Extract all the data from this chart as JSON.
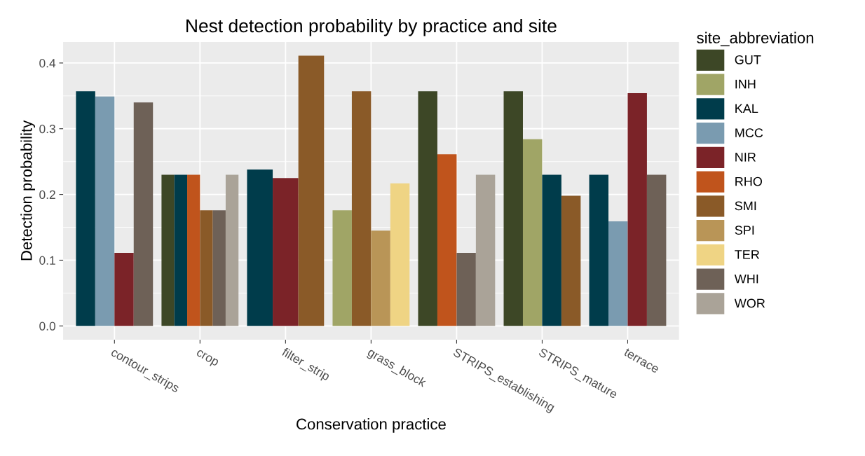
{
  "chart_data": {
    "type": "bar",
    "title": "Nest detection probability by practice and site",
    "xlabel": "Conservation practice",
    "ylabel": "Detection probability",
    "legend_title": "site_abbreviation",
    "legend": "right",
    "grid": true,
    "categories": [
      "contour_strips",
      "crop",
      "filter_strip",
      "grass_block",
      "STRIPS_establishing",
      "STRIPS_mature",
      "terrace"
    ],
    "ylim": [
      -0.021,
      0.432
    ],
    "yticks": [
      {
        "value": 0,
        "label": "0.0"
      },
      0.1,
      0.2,
      0.3,
      0.4
    ],
    "series": [
      {
        "name": "GUT",
        "color": "#3d4726",
        "values": [
          null,
          0.23,
          null,
          null,
          0.357,
          0.357,
          null
        ]
      },
      {
        "name": "INH",
        "color": "#a0a566",
        "values": [
          null,
          null,
          null,
          0.176,
          null,
          0.284,
          null
        ]
      },
      {
        "name": "KAL",
        "color": "#003c4b",
        "values": [
          0.357,
          0.23,
          0.238,
          null,
          null,
          0.23,
          0.23
        ]
      },
      {
        "name": "MCC",
        "color": "#7a9bb0",
        "values": [
          0.349,
          null,
          null,
          null,
          null,
          null,
          0.159
        ]
      },
      {
        "name": "NIR",
        "color": "#7b2328",
        "values": [
          0.111,
          null,
          0.225,
          null,
          null,
          null,
          0.354
        ]
      },
      {
        "name": "RHO",
        "color": "#c0541c",
        "values": [
          null,
          0.23,
          null,
          null,
          0.261,
          null,
          null
        ]
      },
      {
        "name": "SMI",
        "color": "#8a5a28",
        "values": [
          null,
          0.176,
          0.411,
          0.357,
          null,
          0.198,
          null
        ]
      },
      {
        "name": "SPI",
        "color": "#b99557",
        "values": [
          null,
          null,
          null,
          0.145,
          null,
          null,
          null
        ]
      },
      {
        "name": "TER",
        "color": "#efd484",
        "values": [
          null,
          null,
          null,
          0.217,
          null,
          null,
          null
        ]
      },
      {
        "name": "WHI",
        "color": "#6e6157",
        "values": [
          0.34,
          0.176,
          null,
          null,
          0.111,
          null,
          0.23
        ]
      },
      {
        "name": "WOR",
        "color": "#aaa398",
        "values": [
          null,
          0.23,
          null,
          null,
          0.23,
          null,
          null
        ]
      }
    ]
  }
}
